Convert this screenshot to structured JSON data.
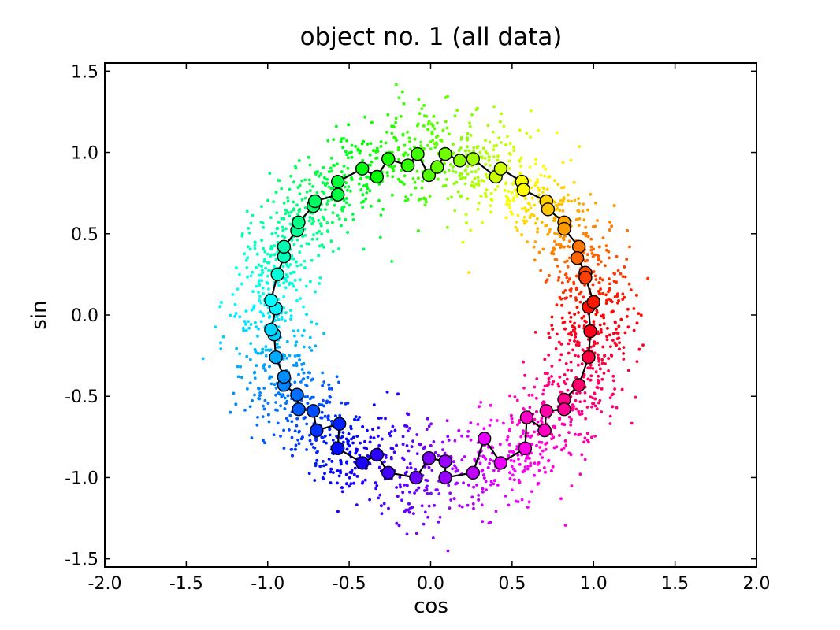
{
  "chart_data": {
    "type": "scatter",
    "title": "object no. 1 (all data)",
    "xlabel": "cos",
    "ylabel": "sin",
    "xlim": [
      -2.0,
      2.0
    ],
    "ylim": [
      -1.55,
      1.55
    ],
    "xticks": [
      -2.0,
      -1.5,
      -1.0,
      -0.5,
      0.0,
      0.5,
      1.0,
      1.5,
      2.0
    ],
    "xtick_labels": [
      "-2.0",
      "-1.5",
      "-1.0",
      "-0.5",
      "0.0",
      "0.5",
      "1.0",
      "1.5",
      "2.0"
    ],
    "yticks": [
      -1.5,
      -1.0,
      -0.5,
      0.0,
      0.5,
      1.0,
      1.5
    ],
    "ytick_labels": [
      "-1.5",
      "-1.0",
      "-0.5",
      "0.0",
      "0.5",
      "1.0",
      "1.5"
    ],
    "grid": false,
    "colormap": "hsv",
    "scatter_cloud": {
      "description_free": true,
      "radius_mean": 1.0,
      "radius_spread": 0.13,
      "count": 3000
    },
    "path_series": {
      "line_color": "#000000",
      "points": [
        [
          1.0,
          0.08
        ],
        [
          0.97,
          0.05
        ],
        [
          0.98,
          -0.1
        ],
        [
          0.97,
          -0.26
        ],
        [
          0.91,
          -0.43
        ],
        [
          0.82,
          -0.52
        ],
        [
          0.82,
          -0.58
        ],
        [
          0.71,
          -0.59
        ],
        [
          0.7,
          -0.71
        ],
        [
          0.59,
          -0.63
        ],
        [
          0.58,
          -0.82
        ],
        [
          0.43,
          -0.91
        ],
        [
          0.33,
          -0.76
        ],
        [
          0.26,
          -0.97
        ],
        [
          0.09,
          -1.0
        ],
        [
          0.09,
          -0.9
        ],
        [
          -0.01,
          -0.88
        ],
        [
          -0.09,
          -1.0
        ],
        [
          -0.26,
          -0.97
        ],
        [
          -0.33,
          -0.86
        ],
        [
          -0.42,
          -0.91
        ],
        [
          -0.57,
          -0.82
        ],
        [
          -0.56,
          -0.67
        ],
        [
          -0.7,
          -0.71
        ],
        [
          -0.72,
          -0.59
        ],
        [
          -0.81,
          -0.58
        ],
        [
          -0.82,
          -0.49
        ],
        [
          -0.9,
          -0.43
        ],
        [
          -0.9,
          -0.38
        ],
        [
          -0.95,
          -0.26
        ],
        [
          -0.96,
          -0.12
        ],
        [
          -0.98,
          -0.09
        ],
        [
          -0.95,
          0.04
        ],
        [
          -0.98,
          0.09
        ],
        [
          -0.94,
          0.25
        ],
        [
          -0.9,
          0.36
        ],
        [
          -0.9,
          0.42
        ],
        [
          -0.82,
          0.52
        ],
        [
          -0.81,
          0.57
        ],
        [
          -0.72,
          0.67
        ],
        [
          -0.71,
          0.7
        ],
        [
          -0.57,
          0.74
        ],
        [
          -0.57,
          0.82
        ],
        [
          -0.42,
          0.9
        ],
        [
          -0.33,
          0.85
        ],
        [
          -0.26,
          0.96
        ],
        [
          -0.14,
          0.92
        ],
        [
          -0.08,
          0.99
        ],
        [
          -0.01,
          0.86
        ],
        [
          0.04,
          0.91
        ],
        [
          0.09,
          0.99
        ],
        [
          0.18,
          0.95
        ],
        [
          0.26,
          0.96
        ],
        [
          0.4,
          0.85
        ],
        [
          0.43,
          0.9
        ],
        [
          0.56,
          0.82
        ],
        [
          0.57,
          0.77
        ],
        [
          0.71,
          0.7
        ],
        [
          0.72,
          0.65
        ],
        [
          0.82,
          0.57
        ],
        [
          0.82,
          0.53
        ],
        [
          0.91,
          0.42
        ],
        [
          0.9,
          0.35
        ],
        [
          0.95,
          0.26
        ],
        [
          0.95,
          0.23
        ],
        [
          1.0,
          0.08
        ]
      ]
    }
  }
}
